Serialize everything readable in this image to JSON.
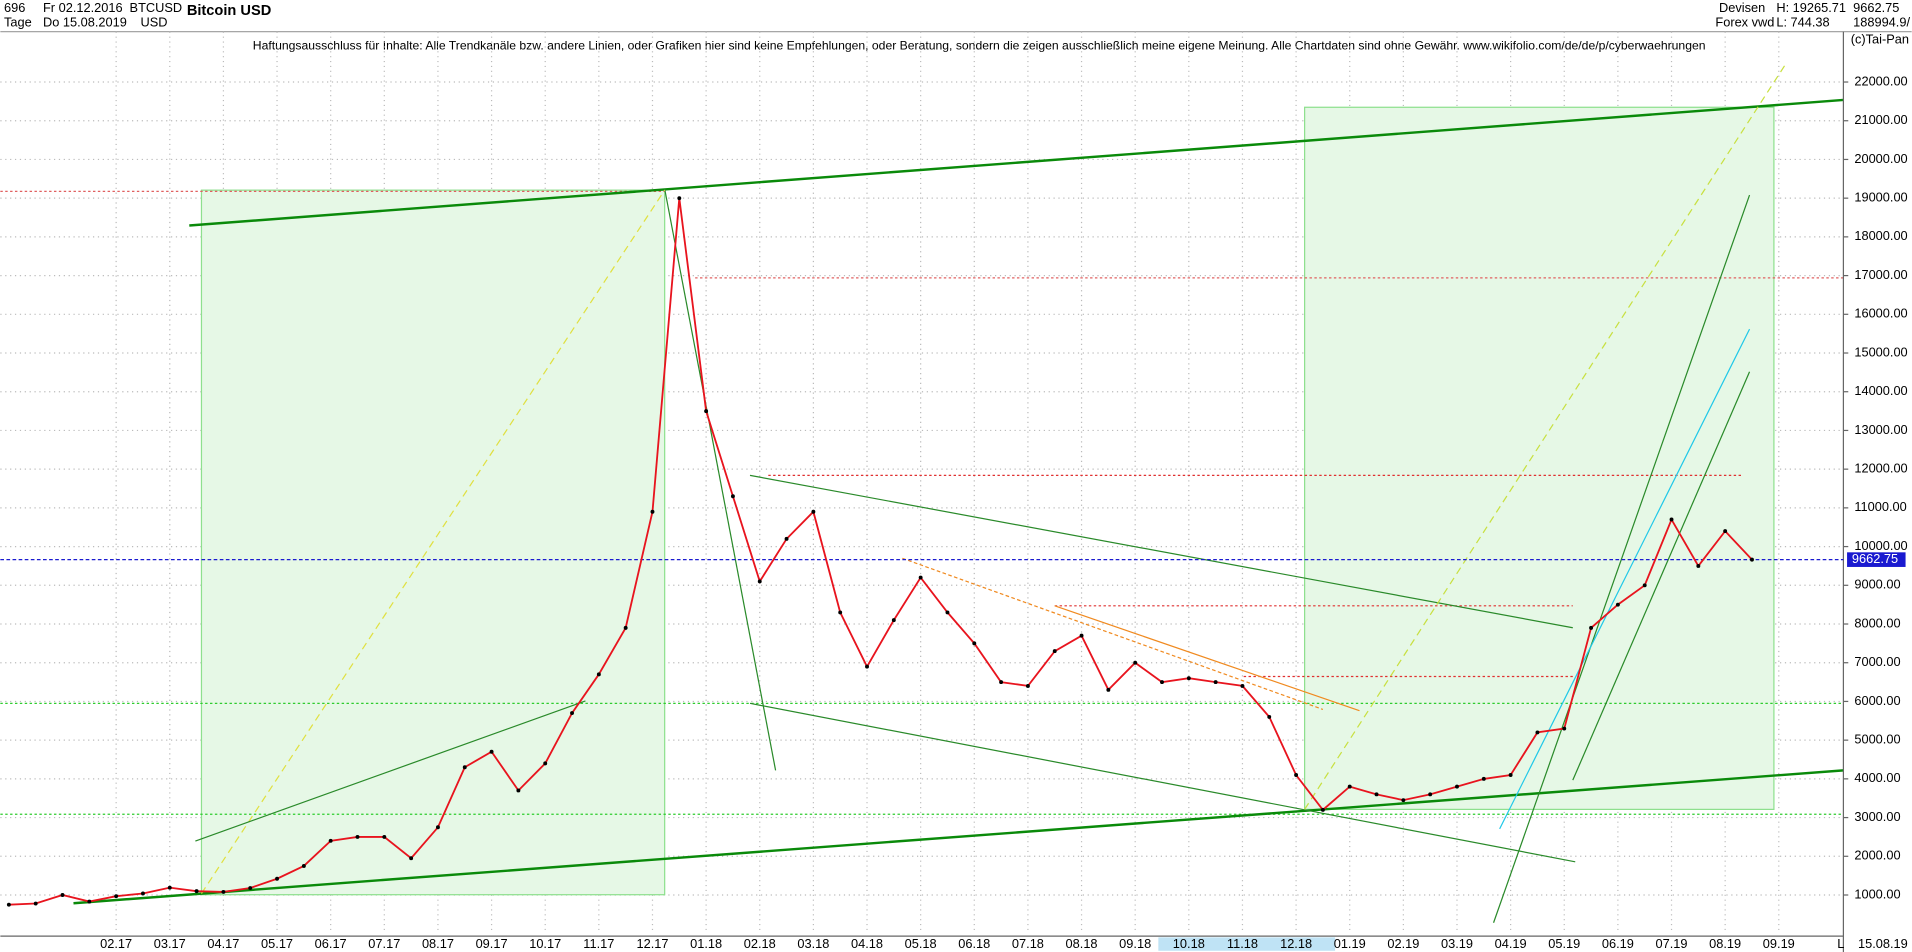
{
  "header": {
    "count": "696",
    "from": "Fr 02.12.2016",
    "symbol": "BTCUSD",
    "currency": "USD",
    "period": "Tage",
    "to": "Do 15.08.2019",
    "market": "Devisen",
    "source": "Forex vwd",
    "high": "H: 19265.71",
    "low": "L: 744.38",
    "last": "9662.75",
    "volume": "188994.9/",
    "copyright": "(c)Tai-Pan",
    "date_end": "15.08.19",
    "scale_mode": "L"
  },
  "chart_data": {
    "type": "line",
    "title": "Bitcoin USD",
    "annotation": "Haftungsausschluss für Inhalte: Alle Trendkanäle bzw. andere Linien, oder Grafiken hier sind keine Empfehlungen, oder Beratung, sondern die zeigen ausschließlich meine eigene Meinung. Alle Chartdaten sind ohne Gewähr.  www.wikifolio.com/de/de/p/cyberwaehrungen",
    "categories": [
      null,
      null,
      null,
      null,
      "02.17",
      null,
      "03.17",
      null,
      "04.17",
      null,
      "05.17",
      null,
      "06.17",
      null,
      "07.17",
      null,
      "08.17",
      null,
      "09.17",
      null,
      "10.17",
      null,
      "11.17",
      null,
      "12.17",
      null,
      "01.18",
      null,
      "02.18",
      null,
      "03.18",
      null,
      "04.18",
      null,
      "05.18",
      null,
      "06.18",
      null,
      "07.18",
      null,
      "08.18",
      null,
      "09.18",
      null,
      "10.18",
      null,
      "11.18",
      null,
      "12.18",
      null,
      "01.19",
      null,
      "02.19",
      null,
      "03.19",
      null,
      "04.19",
      null,
      "05.19",
      null,
      "06.19",
      null,
      "07.19",
      null,
      "08.19",
      null,
      "09.19"
    ],
    "values": [
      750,
      780,
      1000,
      830,
      970,
      1040,
      1190,
      1100,
      1080,
      1180,
      1420,
      1750,
      2400,
      2500,
      2500,
      1950,
      2750,
      4300,
      4700,
      3700,
      4400,
      5700,
      6700,
      7900,
      10900,
      19000,
      13500,
      11300,
      9100,
      10200,
      10900,
      8300,
      6900,
      8100,
      9200,
      8300,
      7500,
      6500,
      6400,
      7300,
      7700,
      6300,
      7000,
      6500,
      6600,
      6500,
      6400,
      5600,
      4100,
      3200,
      3800,
      3600,
      3450,
      3600,
      3800,
      4000,
      4100,
      5200,
      5300,
      7900,
      8500,
      9000,
      10700,
      9500,
      10400,
      9662.75,
      null
    ],
    "color": "#e8141e",
    "last_price": 9662.75,
    "ylim": [
      0,
      23300
    ],
    "yticks": [
      {
        "value": 1000,
        "label": "1000.00"
      },
      {
        "value": 2000,
        "label": "2000.00"
      },
      {
        "value": 3000,
        "label": "3000.00"
      },
      {
        "value": 4000,
        "label": "4000.00"
      },
      {
        "value": 5000,
        "label": "5000.00"
      },
      {
        "value": 6000,
        "label": "6000.00"
      },
      {
        "value": 7000,
        "label": "7000.00"
      },
      {
        "value": 8000,
        "label": "8000.00"
      },
      {
        "value": 9000,
        "label": "9000.00"
      },
      {
        "value": 10000,
        "label": "10000.00"
      },
      {
        "value": 11000,
        "label": "11000.00"
      },
      {
        "value": 12000,
        "label": "12000.00"
      },
      {
        "value": 13000,
        "label": "13000.00"
      },
      {
        "value": 14000,
        "label": "14000.00"
      },
      {
        "value": 15000,
        "label": "15000.00"
      },
      {
        "value": 16000,
        "label": "16000.00"
      },
      {
        "value": 17000,
        "label": "17000.00"
      },
      {
        "value": 18000,
        "label": "18000.00"
      },
      {
        "value": 19000,
        "label": "19000.00"
      },
      {
        "value": 20000,
        "label": "20000.00"
      },
      {
        "value": 21000,
        "label": "21000.00"
      },
      {
        "value": 22000,
        "label": "22000.00"
      }
    ],
    "grid": true
  }
}
